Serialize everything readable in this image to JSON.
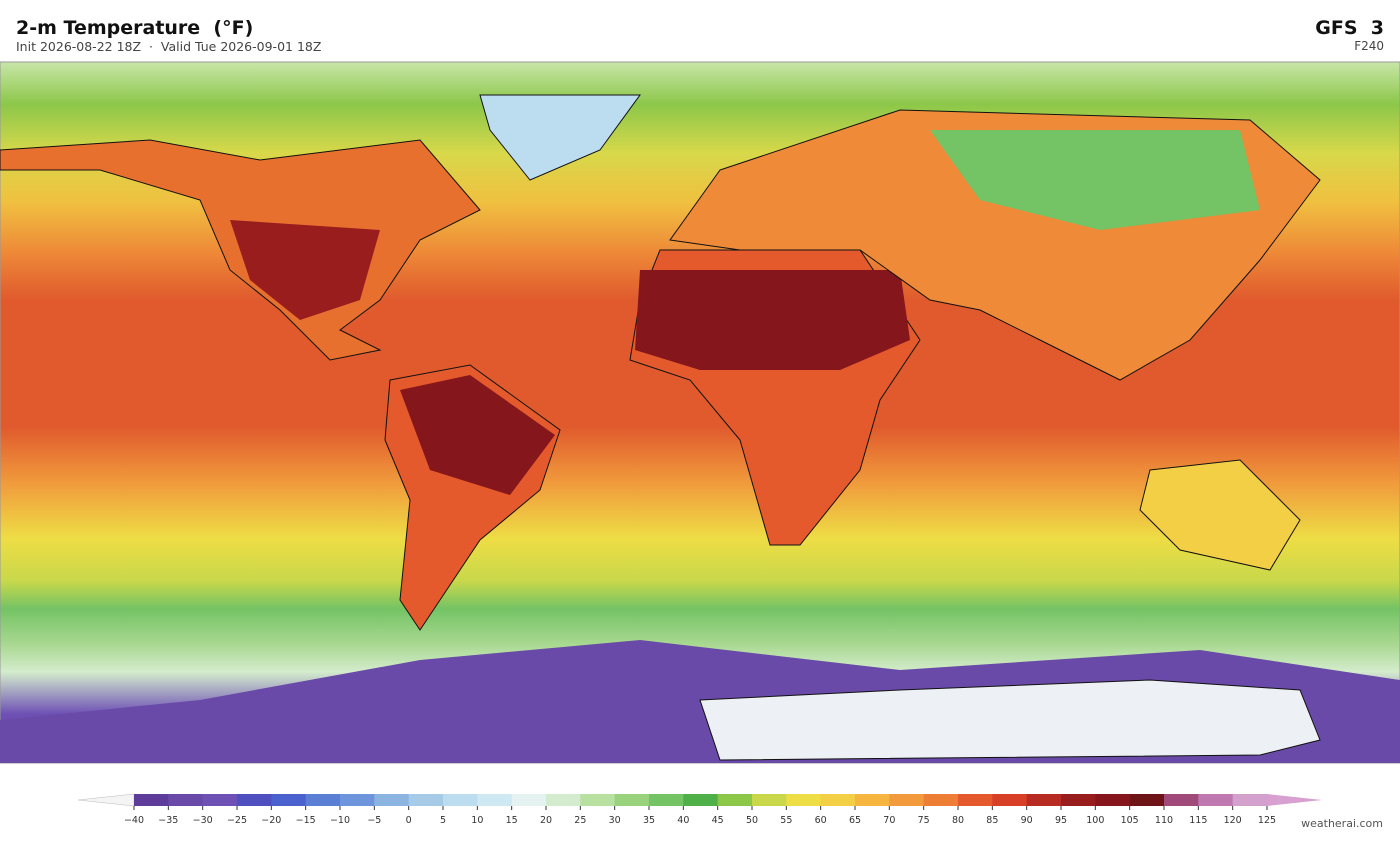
{
  "header": {
    "title": "2-m Temperature  (°F)",
    "subtitle": "Init 2026-08-22 18Z  ·  Valid Tue 2026-09-01 18Z",
    "model": "GFS  3",
    "forecast_hour": "F240"
  },
  "colorbar": {
    "levels": [
      {
        "value": -40,
        "label": "−40"
      },
      {
        "value": -35,
        "label": "−35"
      },
      {
        "value": -30,
        "label": "−30"
      },
      {
        "value": -25,
        "label": "−25"
      },
      {
        "value": -20,
        "label": "−20"
      },
      {
        "value": -15,
        "label": "−15"
      },
      {
        "value": -10,
        "label": "−10"
      },
      {
        "value": -5,
        "label": "−5"
      },
      0,
      5,
      10,
      15,
      20,
      25,
      30,
      35,
      40,
      45,
      50,
      55,
      60,
      65,
      70,
      75,
      80,
      85,
      90,
      95,
      100,
      105,
      110,
      115,
      120,
      125
    ],
    "colors": [
      "#5e3c99",
      "#6a4aa8",
      "#6e51b5",
      "#4f4fc0",
      "#4a60cc",
      "#5a7fd4",
      "#6e95dc",
      "#8cb4e0",
      "#a5cbe8",
      "#bcdcef",
      "#d0e8f2",
      "#e4f2f2",
      "#d4eccd",
      "#b8e0a0",
      "#98d27c",
      "#74c365",
      "#4fb04a",
      "#8cc74a",
      "#c8d84a",
      "#eedd45",
      "#f3cf45",
      "#f5b53f",
      "#f29a3c",
      "#ee7e36",
      "#e55a2d",
      "#d83f27",
      "#b82b22",
      "#9a1d1d",
      "#85161b",
      "#6e1418",
      "#a04a7a",
      "#bf78b0",
      "#d4a0cc"
    ],
    "under_color": "#f4f4f4",
    "over_color": "#d8a0d0"
  },
  "footer": {
    "credit": "weatherai.com"
  }
}
